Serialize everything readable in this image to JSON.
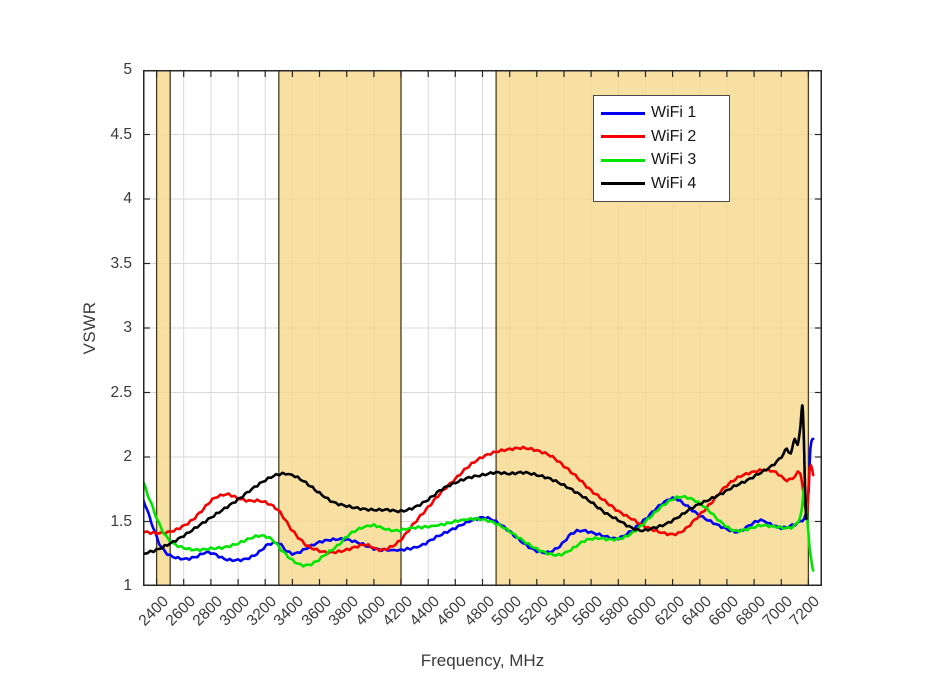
{
  "chart_data": {
    "type": "line",
    "title": "",
    "xlabel": "Frequency, MHz",
    "ylabel": "VSWR",
    "xlim": [
      2300,
      7300
    ],
    "ylim": [
      1,
      5
    ],
    "xticks": [
      2400,
      2600,
      2800,
      3000,
      3200,
      3400,
      3600,
      3800,
      4000,
      4200,
      4400,
      4600,
      4800,
      5000,
      5200,
      5400,
      5600,
      5800,
      6000,
      6200,
      6400,
      6600,
      6800,
      7000,
      7200
    ],
    "yticks": [
      1,
      1.5,
      2,
      2.5,
      3,
      3.5,
      4,
      4.5,
      5
    ],
    "grid": true,
    "legend": {
      "position": "top-right",
      "entries": [
        "WiFi 1",
        "WiFi 2",
        "WiFi 3",
        "WiFi 4"
      ]
    },
    "shaded_bands": [
      {
        "from": 2400,
        "to": 2500
      },
      {
        "from": 3300,
        "to": 4200
      },
      {
        "from": 4900,
        "to": 7200
      }
    ],
    "colors": {
      "grid": "#d9d9d9",
      "axis": "#262626",
      "text": "#3a3a3a",
      "band_fill": "#f6d88b",
      "band_edge": "#4a3b1f"
    },
    "series": [
      {
        "name": "WiFi 1",
        "color": "#0000f5",
        "points": [
          [
            2300,
            1.68
          ],
          [
            2360,
            1.5
          ],
          [
            2420,
            1.33
          ],
          [
            2480,
            1.25
          ],
          [
            2540,
            1.22
          ],
          [
            2620,
            1.21
          ],
          [
            2700,
            1.23
          ],
          [
            2760,
            1.26
          ],
          [
            2820,
            1.25
          ],
          [
            2900,
            1.21
          ],
          [
            2980,
            1.2
          ],
          [
            3060,
            1.21
          ],
          [
            3140,
            1.25
          ],
          [
            3220,
            1.32
          ],
          [
            3300,
            1.33
          ],
          [
            3360,
            1.27
          ],
          [
            3420,
            1.25
          ],
          [
            3500,
            1.29
          ],
          [
            3600,
            1.34
          ],
          [
            3700,
            1.36
          ],
          [
            3800,
            1.36
          ],
          [
            3900,
            1.33
          ],
          [
            4000,
            1.29
          ],
          [
            4080,
            1.28
          ],
          [
            4200,
            1.28
          ],
          [
            4340,
            1.31
          ],
          [
            4460,
            1.38
          ],
          [
            4580,
            1.44
          ],
          [
            4700,
            1.5
          ],
          [
            4800,
            1.53
          ],
          [
            4880,
            1.51
          ],
          [
            4980,
            1.44
          ],
          [
            5080,
            1.35
          ],
          [
            5180,
            1.28
          ],
          [
            5280,
            1.26
          ],
          [
            5370,
            1.31
          ],
          [
            5450,
            1.4
          ],
          [
            5520,
            1.43
          ],
          [
            5620,
            1.41
          ],
          [
            5720,
            1.38
          ],
          [
            5800,
            1.37
          ],
          [
            5900,
            1.43
          ],
          [
            6000,
            1.52
          ],
          [
            6100,
            1.62
          ],
          [
            6200,
            1.68
          ],
          [
            6280,
            1.64
          ],
          [
            6380,
            1.56
          ],
          [
            6480,
            1.5
          ],
          [
            6580,
            1.45
          ],
          [
            6680,
            1.42
          ],
          [
            6780,
            1.48
          ],
          [
            6850,
            1.51
          ],
          [
            6920,
            1.48
          ],
          [
            7000,
            1.45
          ],
          [
            7080,
            1.47
          ],
          [
            7140,
            1.5
          ],
          [
            7180,
            1.55
          ],
          [
            7200,
            1.72
          ],
          [
            7215,
            2.08
          ],
          [
            7235,
            2.14
          ]
        ]
      },
      {
        "name": "WiFi 2",
        "color": "#f40000",
        "points": [
          [
            2300,
            1.42
          ],
          [
            2400,
            1.41
          ],
          [
            2500,
            1.42
          ],
          [
            2570,
            1.45
          ],
          [
            2650,
            1.5
          ],
          [
            2730,
            1.58
          ],
          [
            2810,
            1.67
          ],
          [
            2870,
            1.7
          ],
          [
            2930,
            1.71
          ],
          [
            3000,
            1.68
          ],
          [
            3080,
            1.66
          ],
          [
            3160,
            1.66
          ],
          [
            3240,
            1.63
          ],
          [
            3310,
            1.57
          ],
          [
            3400,
            1.43
          ],
          [
            3500,
            1.32
          ],
          [
            3580,
            1.28
          ],
          [
            3660,
            1.26
          ],
          [
            3760,
            1.27
          ],
          [
            3860,
            1.3
          ],
          [
            3940,
            1.32
          ],
          [
            4040,
            1.28
          ],
          [
            4120,
            1.3
          ],
          [
            4200,
            1.36
          ],
          [
            4300,
            1.49
          ],
          [
            4400,
            1.61
          ],
          [
            4500,
            1.73
          ],
          [
            4600,
            1.83
          ],
          [
            4700,
            1.93
          ],
          [
            4800,
            2.0
          ],
          [
            4900,
            2.04
          ],
          [
            5000,
            2.06
          ],
          [
            5100,
            2.07
          ],
          [
            5200,
            2.05
          ],
          [
            5300,
            2.01
          ],
          [
            5400,
            1.93
          ],
          [
            5500,
            1.84
          ],
          [
            5600,
            1.74
          ],
          [
            5700,
            1.66
          ],
          [
            5800,
            1.58
          ],
          [
            5900,
            1.52
          ],
          [
            6000,
            1.46
          ],
          [
            6100,
            1.42
          ],
          [
            6200,
            1.4
          ],
          [
            6280,
            1.43
          ],
          [
            6380,
            1.53
          ],
          [
            6480,
            1.64
          ],
          [
            6580,
            1.76
          ],
          [
            6680,
            1.84
          ],
          [
            6780,
            1.88
          ],
          [
            6880,
            1.9
          ],
          [
            6960,
            1.88
          ],
          [
            7040,
            1.82
          ],
          [
            7100,
            1.85
          ],
          [
            7140,
            1.88
          ],
          [
            7170,
            1.66
          ],
          [
            7190,
            1.56
          ],
          [
            7210,
            1.92
          ],
          [
            7235,
            1.86
          ]
        ]
      },
      {
        "name": "WiFi 3",
        "color": "#00e400",
        "points": [
          [
            2300,
            1.81
          ],
          [
            2360,
            1.64
          ],
          [
            2420,
            1.48
          ],
          [
            2480,
            1.37
          ],
          [
            2540,
            1.32
          ],
          [
            2620,
            1.29
          ],
          [
            2700,
            1.28
          ],
          [
            2800,
            1.29
          ],
          [
            2900,
            1.3
          ],
          [
            3000,
            1.33
          ],
          [
            3090,
            1.37
          ],
          [
            3170,
            1.39
          ],
          [
            3250,
            1.36
          ],
          [
            3320,
            1.28
          ],
          [
            3400,
            1.2
          ],
          [
            3480,
            1.16
          ],
          [
            3560,
            1.18
          ],
          [
            3650,
            1.25
          ],
          [
            3730,
            1.31
          ],
          [
            3820,
            1.4
          ],
          [
            3910,
            1.45
          ],
          [
            4000,
            1.47
          ],
          [
            4090,
            1.44
          ],
          [
            4170,
            1.43
          ],
          [
            4280,
            1.45
          ],
          [
            4400,
            1.46
          ],
          [
            4520,
            1.48
          ],
          [
            4640,
            1.51
          ],
          [
            4760,
            1.52
          ],
          [
            4860,
            1.5
          ],
          [
            4960,
            1.45
          ],
          [
            5060,
            1.38
          ],
          [
            5160,
            1.31
          ],
          [
            5260,
            1.26
          ],
          [
            5360,
            1.24
          ],
          [
            5450,
            1.28
          ],
          [
            5550,
            1.35
          ],
          [
            5650,
            1.37
          ],
          [
            5750,
            1.36
          ],
          [
            5850,
            1.38
          ],
          [
            5950,
            1.45
          ],
          [
            6050,
            1.55
          ],
          [
            6150,
            1.64
          ],
          [
            6250,
            1.69
          ],
          [
            6350,
            1.67
          ],
          [
            6450,
            1.6
          ],
          [
            6550,
            1.5
          ],
          [
            6650,
            1.43
          ],
          [
            6750,
            1.44
          ],
          [
            6850,
            1.47
          ],
          [
            6950,
            1.46
          ],
          [
            7050,
            1.45
          ],
          [
            7110,
            1.48
          ],
          [
            7150,
            1.58
          ],
          [
            7170,
            1.76
          ],
          [
            7190,
            1.55
          ],
          [
            7210,
            1.28
          ],
          [
            7235,
            1.12
          ]
        ]
      },
      {
        "name": "WiFi 4",
        "color": "#000000",
        "points": [
          [
            2300,
            1.25
          ],
          [
            2400,
            1.28
          ],
          [
            2500,
            1.33
          ],
          [
            2600,
            1.39
          ],
          [
            2700,
            1.46
          ],
          [
            2800,
            1.53
          ],
          [
            2900,
            1.6
          ],
          [
            3000,
            1.67
          ],
          [
            3100,
            1.75
          ],
          [
            3200,
            1.82
          ],
          [
            3280,
            1.86
          ],
          [
            3350,
            1.87
          ],
          [
            3420,
            1.85
          ],
          [
            3500,
            1.8
          ],
          [
            3600,
            1.72
          ],
          [
            3700,
            1.65
          ],
          [
            3800,
            1.62
          ],
          [
            3900,
            1.6
          ],
          [
            4000,
            1.59
          ],
          [
            4100,
            1.59
          ],
          [
            4200,
            1.58
          ],
          [
            4300,
            1.61
          ],
          [
            4400,
            1.67
          ],
          [
            4500,
            1.75
          ],
          [
            4600,
            1.8
          ],
          [
            4700,
            1.84
          ],
          [
            4800,
            1.86
          ],
          [
            4900,
            1.88
          ],
          [
            5000,
            1.87
          ],
          [
            5100,
            1.88
          ],
          [
            5200,
            1.86
          ],
          [
            5300,
            1.83
          ],
          [
            5400,
            1.78
          ],
          [
            5500,
            1.72
          ],
          [
            5600,
            1.65
          ],
          [
            5700,
            1.57
          ],
          [
            5800,
            1.51
          ],
          [
            5900,
            1.45
          ],
          [
            5980,
            1.43
          ],
          [
            6060,
            1.45
          ],
          [
            6150,
            1.48
          ],
          [
            6250,
            1.54
          ],
          [
            6350,
            1.61
          ],
          [
            6450,
            1.66
          ],
          [
            6550,
            1.71
          ],
          [
            6650,
            1.77
          ],
          [
            6750,
            1.82
          ],
          [
            6850,
            1.88
          ],
          [
            6930,
            1.93
          ],
          [
            7000,
            2.0
          ],
          [
            7040,
            2.06
          ],
          [
            7070,
            2.03
          ],
          [
            7100,
            2.14
          ],
          [
            7120,
            2.1
          ],
          [
            7140,
            2.22
          ],
          [
            7155,
            2.4
          ],
          [
            7165,
            2.2
          ],
          [
            7175,
            1.78
          ],
          [
            7185,
            1.52
          ]
        ]
      }
    ]
  }
}
